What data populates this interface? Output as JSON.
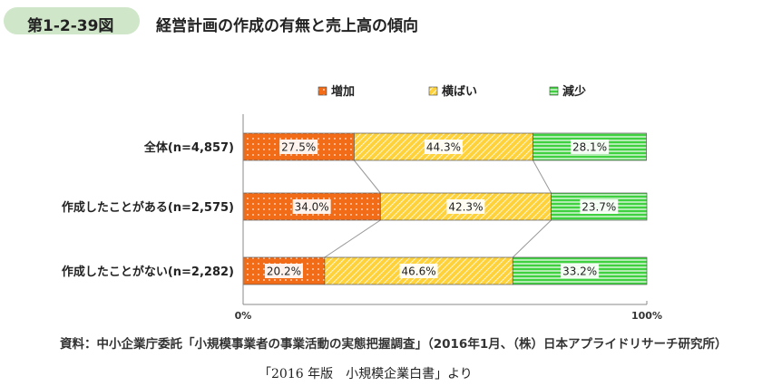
{
  "figure": {
    "number": "第1-2-39図",
    "title": "経営計画の作成の有無と売上高の傾向"
  },
  "source": "資料：中小企業庁委託「小規模事業者の事業活動の実態把握調査」（2016年1月、（株）日本アプライドリサーチ研究所）",
  "citation": "「2016 年版　小規模企業白書」より",
  "colors": {
    "increase": "#f26b16",
    "flat": "#ffd23a",
    "decrease": "#3fd13f",
    "badge": "#cfe6c9"
  },
  "chart_data": {
    "type": "bar",
    "orientation": "horizontal",
    "stacked": true,
    "percent_stacked": true,
    "categories": [
      "全体(n=4,857)",
      "作成したことがある(n=2,575)",
      "作成したことがない(n=2,282)"
    ],
    "series": [
      {
        "name": "増加",
        "values": [
          27.5,
          34.0,
          20.2
        ],
        "labels": [
          "27.5%",
          "34.0%",
          "20.2%"
        ]
      },
      {
        "name": "横ばい",
        "values": [
          44.3,
          42.3,
          46.6
        ],
        "labels": [
          "44.3%",
          "42.3%",
          "46.6%"
        ]
      },
      {
        "name": "減少",
        "values": [
          28.1,
          23.7,
          33.2
        ],
        "labels": [
          "28.1%",
          "23.7%",
          "33.2%"
        ]
      }
    ],
    "xlim": [
      0,
      100
    ],
    "xticks": [
      "0%",
      "100%"
    ],
    "legend": "top",
    "grid": false,
    "connector_lines": true
  }
}
